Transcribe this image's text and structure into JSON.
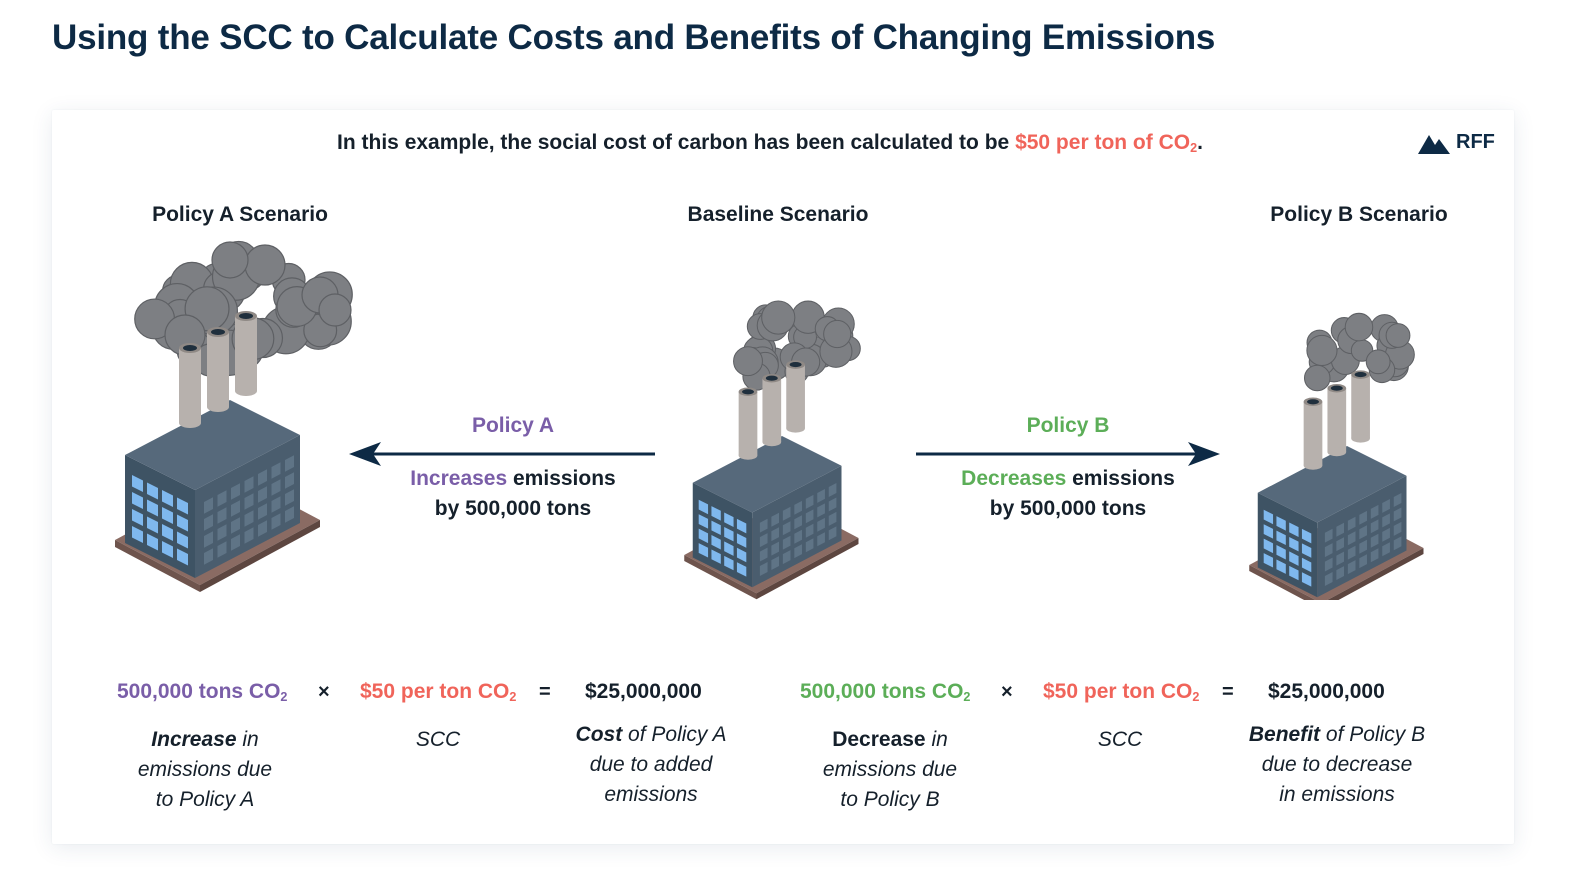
{
  "title": "Using the SCC to Calculate Costs and Benefits of Changing Emissions",
  "intro": {
    "text": "In this example, the social cost of carbon has been calculated to be ",
    "highlight": "$50 per ton of CO",
    "sub": "2",
    "end": "."
  },
  "logo": {
    "text": "RFF",
    "icon": "mountain-icon"
  },
  "scenarios": {
    "a": "Policy A Scenario",
    "baseline": "Baseline Scenario",
    "b": "Policy B Scenario"
  },
  "policy_a": {
    "label": "Policy A",
    "desc_highlight": "Increases",
    "desc_rest": " emissions",
    "desc_line2": "by 500,000 tons"
  },
  "policy_b": {
    "label": "Policy B",
    "desc_highlight": "Decreases",
    "desc_rest": " emissions",
    "desc_line2": "by 500,000 tons"
  },
  "equation_a": {
    "quantity": "500,000 tons CO",
    "quantity_sub": "2",
    "times": "×",
    "scc": "$50 per ton CO",
    "scc_sub": "2",
    "equals": "=",
    "result": "$25,000,000",
    "cap_quantity_bold": "Increase",
    "cap_quantity_1": " in",
    "cap_quantity_2": "emissions due",
    "cap_quantity_3": "to Policy A",
    "cap_scc": "SCC",
    "cap_result_bold": "Cost",
    "cap_result_1": " of Policy A",
    "cap_result_2": "due to added",
    "cap_result_3": "emissions"
  },
  "equation_b": {
    "quantity": "500,000 tons CO",
    "quantity_sub": "2",
    "times": "×",
    "scc": "$50 per ton CO",
    "scc_sub": "2",
    "equals": "=",
    "result": "$25,000,000",
    "cap_quantity_bold": "Decrease",
    "cap_quantity_1": " in",
    "cap_quantity_2": "emissions due",
    "cap_quantity_3": "to Policy B",
    "cap_scc": "SCC",
    "cap_result_bold": "Benefit",
    "cap_result_1": " of Policy B",
    "cap_result_2": "due to decrease",
    "cap_result_3": "in emissions"
  },
  "colors": {
    "purple": "#7a5ea8",
    "green": "#5cae58",
    "red": "#f0645a",
    "navy": "#0d2a45",
    "smoke": "#7d7f83",
    "factory": "#4a5d6e"
  },
  "icons": {
    "factory_a": "factory-icon",
    "factory_baseline": "factory-icon",
    "factory_b": "factory-icon",
    "arrow_left": "arrow-left-icon",
    "arrow_right": "arrow-right-icon"
  }
}
